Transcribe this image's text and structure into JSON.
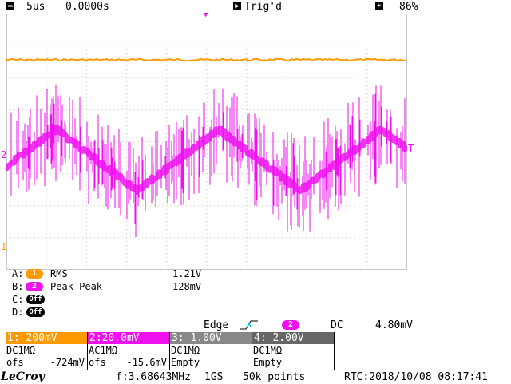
{
  "topbar": {
    "timebase": "5µs",
    "delay": "0.0000s",
    "trigger_state": "Trig'd",
    "brightness": "86%"
  },
  "colors": {
    "ch1": "#ff9900",
    "ch2": "#ee11ee",
    "ch3": "#888888",
    "ch4": "#666666",
    "grid": "#c8c8c8",
    "trigger_marker": "#00cccc"
  },
  "screen": {
    "ch1_marker": "1",
    "ch2_marker": "2",
    "trigger_level_marker": "T"
  },
  "measurements": [
    {
      "slot": "A:",
      "channel": "1",
      "name": "RMS",
      "value": "1.21V"
    },
    {
      "slot": "B:",
      "channel": "2",
      "name": "Peak-Peak",
      "value": "128mV"
    },
    {
      "slot": "C:",
      "channel": "Off",
      "name": "",
      "value": ""
    },
    {
      "slot": "D:",
      "channel": "Off",
      "name": "",
      "value": ""
    }
  ],
  "trigger": {
    "type": "Edge",
    "source": "2",
    "coupling": "DC",
    "level": "4.80mV"
  },
  "channels": [
    {
      "header": "1: 200mV",
      "coupling": "DC1MΩ",
      "offset_label": "ofs",
      "offset": "-724mV",
      "color": "#ff9900"
    },
    {
      "header": "2:20.0mV",
      "coupling": "AC1MΩ",
      "offset_label": "ofs",
      "offset": "-15.6mV",
      "color": "#ee11ee"
    },
    {
      "header": "3: 1.00V",
      "coupling": "DC1MΩ",
      "offset_label": "Empty",
      "offset": "",
      "color": "#888888"
    },
    {
      "header": "4: 2.00V",
      "coupling": "DC1MΩ",
      "offset_label": "Empty",
      "offset": "",
      "color": "#666666"
    }
  ],
  "statusbar": {
    "brand": "LeCroy",
    "frequency": "f:3.68643MHz",
    "sample_rate": "1GS",
    "points": "50k points",
    "rtc": "RTC:2018/10/08 08:17:41"
  }
}
